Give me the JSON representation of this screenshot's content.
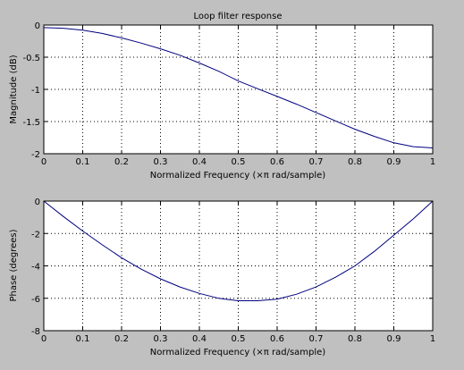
{
  "chart_data": [
    {
      "type": "line",
      "title": "Loop filter response",
      "xlabel": "Normalized Frequency  (×π rad/sample)",
      "ylabel": "Magnitude (dB)",
      "xlim": [
        0,
        1
      ],
      "ylim": [
        -2,
        0
      ],
      "xticks": [
        "0",
        "0.1",
        "0.2",
        "0.3",
        "0.4",
        "0.5",
        "0.6",
        "0.7",
        "0.8",
        "0.9",
        "1"
      ],
      "yticks": [
        "0",
        "-0.5",
        "-1",
        "-1.5",
        "-2"
      ],
      "grid": true,
      "line_color": "#00007f",
      "x": [
        0,
        0.05,
        0.1,
        0.15,
        0.2,
        0.25,
        0.3,
        0.35,
        0.4,
        0.45,
        0.5,
        0.55,
        0.6,
        0.65,
        0.7,
        0.75,
        0.8,
        0.85,
        0.9,
        0.95,
        1.0
      ],
      "y": [
        -0.04,
        -0.05,
        -0.08,
        -0.13,
        -0.2,
        -0.28,
        -0.37,
        -0.47,
        -0.59,
        -0.72,
        -0.87,
        -0.99,
        -1.11,
        -1.23,
        -1.36,
        -1.49,
        -1.62,
        -1.73,
        -1.83,
        -1.89,
        -1.91
      ]
    },
    {
      "type": "line",
      "title": "",
      "xlabel": "Normalized Frequency  (×π rad/sample)",
      "ylabel": "Phase (degrees)",
      "xlim": [
        0,
        1
      ],
      "ylim": [
        -8,
        0
      ],
      "xticks": [
        "0",
        "0.1",
        "0.2",
        "0.3",
        "0.4",
        "0.5",
        "0.6",
        "0.7",
        "0.8",
        "0.9",
        "1"
      ],
      "yticks": [
        "0",
        "-2",
        "-4",
        "-6",
        "-8"
      ],
      "grid": true,
      "line_color": "#00007f",
      "x": [
        0,
        0.05,
        0.1,
        0.15,
        0.2,
        0.25,
        0.3,
        0.35,
        0.4,
        0.45,
        0.5,
        0.55,
        0.6,
        0.65,
        0.7,
        0.75,
        0.8,
        0.85,
        0.9,
        0.95,
        1.0
      ],
      "y": [
        0,
        -0.95,
        -1.85,
        -2.7,
        -3.5,
        -4.2,
        -4.8,
        -5.3,
        -5.7,
        -6.0,
        -6.15,
        -6.15,
        -6.05,
        -5.75,
        -5.3,
        -4.7,
        -4.0,
        -3.1,
        -2.1,
        -1.1,
        0
      ]
    }
  ]
}
